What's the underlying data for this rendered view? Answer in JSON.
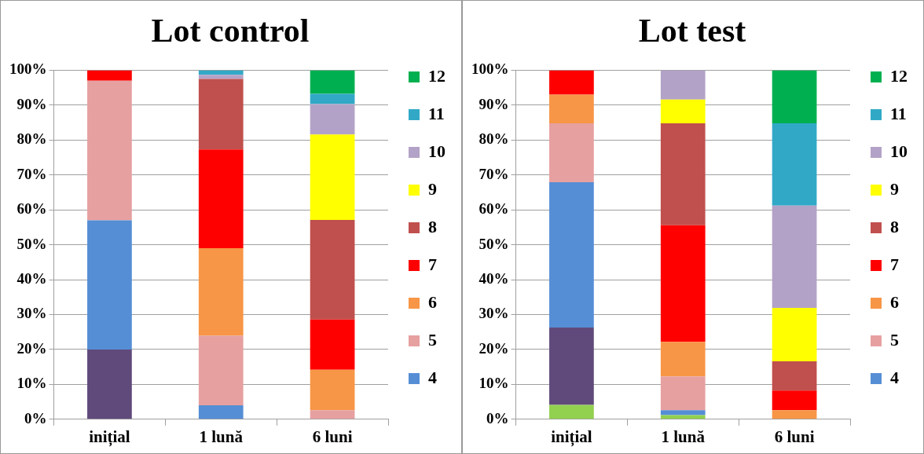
{
  "chart_data": [
    {
      "type": "bar",
      "title": "Lot control",
      "categories": [
        "inițial",
        "1 lună",
        "6 luni"
      ],
      "stacked": true,
      "ylim": [
        0,
        100
      ],
      "yticks": [
        {
          "value": 0,
          "label": "0%"
        },
        {
          "value": 10,
          "label": "10%"
        },
        {
          "value": 20,
          "label": "20%"
        },
        {
          "value": 30,
          "label": "30%"
        },
        {
          "value": 40,
          "label": "40%"
        },
        {
          "value": 50,
          "label": "50%"
        },
        {
          "value": 60,
          "label": "60%"
        },
        {
          "value": 70,
          "label": "70%"
        },
        {
          "value": 80,
          "label": "80%"
        },
        {
          "value": 90,
          "label": "90%"
        },
        {
          "value": 100,
          "label": "100%"
        }
      ],
      "grid": "y",
      "legend": "right",
      "series": [
        {
          "color": "#604a7b",
          "values": [
            20,
            null,
            null
          ]
        },
        {
          "name": "4",
          "color": "#558ed5",
          "values": [
            37,
            4,
            null
          ]
        },
        {
          "name": "5",
          "color": "#e6a0a0",
          "values": [
            40,
            20,
            2.6
          ]
        },
        {
          "name": "6",
          "color": "#f79646",
          "values": [
            null,
            25,
            11.6
          ]
        },
        {
          "name": "7",
          "color": "#ff0000",
          "values": [
            3,
            28.3,
            14.4
          ]
        },
        {
          "name": "8",
          "color": "#c0504d",
          "values": [
            null,
            20.2,
            28.5
          ]
        },
        {
          "name": "9",
          "color": "#ffff00",
          "values": [
            null,
            null,
            24.5
          ]
        },
        {
          "name": "10",
          "color": "#b3a2c7",
          "values": [
            null,
            1.2,
            8.7
          ]
        },
        {
          "name": "11",
          "color": "#31a9c6",
          "values": [
            null,
            1.3,
            2.9
          ]
        },
        {
          "name": "12",
          "color": "#00b050",
          "values": [
            null,
            null,
            6.8
          ]
        }
      ]
    },
    {
      "type": "bar",
      "title": "Lot test",
      "categories": [
        "inițial",
        "1 lună",
        "6 luni"
      ],
      "stacked": true,
      "ylim": [
        0,
        100
      ],
      "yticks": [
        {
          "value": 0,
          "label": "0%"
        },
        {
          "value": 10,
          "label": "10%"
        },
        {
          "value": 20,
          "label": "20%"
        },
        {
          "value": 30,
          "label": "30%"
        },
        {
          "value": 40,
          "label": "40%"
        },
        {
          "value": 50,
          "label": "50%"
        },
        {
          "value": 60,
          "label": "60%"
        },
        {
          "value": 70,
          "label": "70%"
        },
        {
          "value": 80,
          "label": "80%"
        },
        {
          "value": 90,
          "label": "90%"
        },
        {
          "value": 100,
          "label": "100%"
        }
      ],
      "grid": "y",
      "legend": "right",
      "series": [
        {
          "color": "#92d050",
          "values": [
            4.1,
            1.2,
            null
          ]
        },
        {
          "color": "#604a7b",
          "values": [
            22.2,
            null,
            null
          ]
        },
        {
          "name": "4",
          "color": "#558ed5",
          "values": [
            41.6,
            1.4,
            null
          ]
        },
        {
          "name": "5",
          "color": "#e6a0a0",
          "values": [
            16.9,
            9.7,
            null
          ]
        },
        {
          "name": "6",
          "color": "#f79646",
          "values": [
            8.2,
            9.9,
            2.6
          ]
        },
        {
          "name": "7",
          "color": "#ff0000",
          "values": [
            7,
            33.4,
            5.6
          ]
        },
        {
          "name": "8",
          "color": "#c0504d",
          "values": [
            null,
            29.2,
            8.4
          ]
        },
        {
          "name": "9",
          "color": "#ffff00",
          "values": [
            null,
            6.8,
            15.3
          ]
        },
        {
          "name": "10",
          "color": "#b3a2c7",
          "values": [
            null,
            8.4,
            29.3
          ]
        },
        {
          "name": "11",
          "color": "#31a9c6",
          "values": [
            null,
            null,
            23.6
          ]
        },
        {
          "name": "12",
          "color": "#00b050",
          "values": [
            null,
            null,
            15.2
          ]
        }
      ]
    }
  ]
}
